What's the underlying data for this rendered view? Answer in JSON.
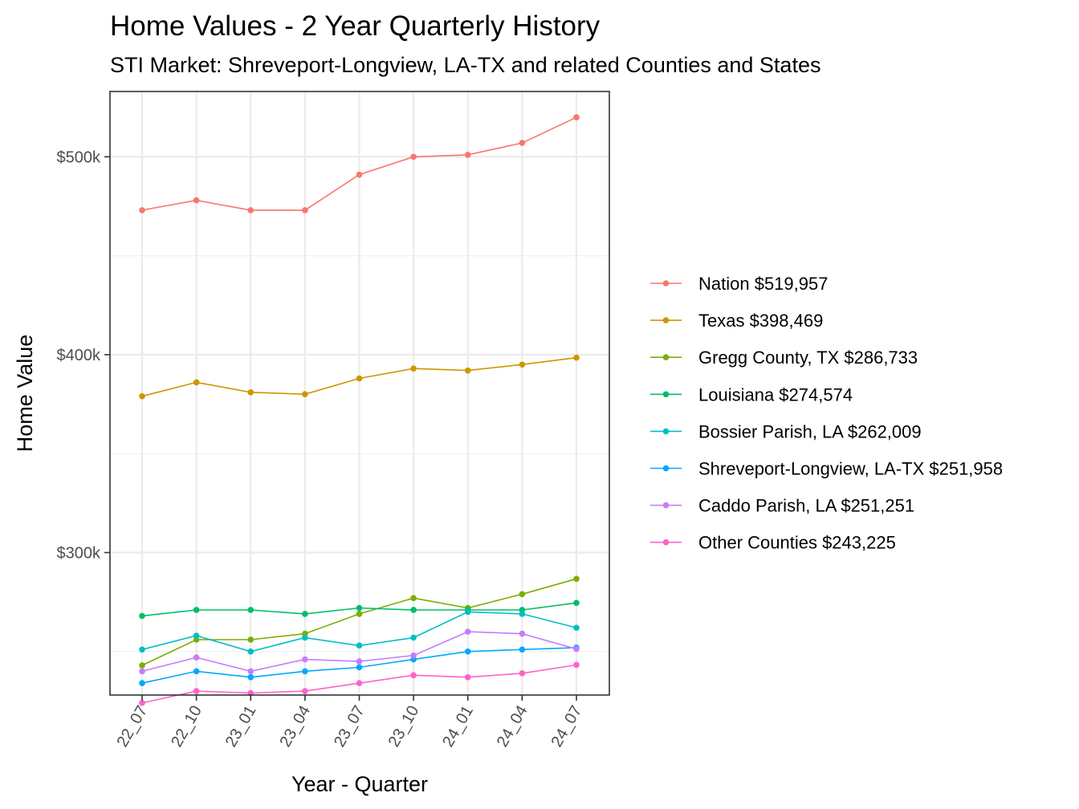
{
  "chart_data": {
    "type": "line",
    "title": "Home Values - 2 Year Quarterly History",
    "subtitle": "STI Market: Shreveport-Longview, LA-TX and related Counties and States",
    "xlabel": "Year - Quarter",
    "ylabel": "Home Value",
    "categories": [
      "22_07",
      "22_10",
      "23_01",
      "23_04",
      "23_07",
      "23_10",
      "24_01",
      "24_04",
      "24_07"
    ],
    "y_ticks": [
      300000,
      400000,
      500000
    ],
    "y_tick_labels": [
      "$300k",
      "$400k",
      "$500k"
    ],
    "ylim": [
      228000,
      533000
    ],
    "grid": true,
    "legend_position": "right",
    "series": [
      {
        "name": "Nation $519,957",
        "color": "#F8766D",
        "values": [
          473000,
          478000,
          473000,
          473000,
          491000,
          500000,
          501000,
          507000,
          519957
        ]
      },
      {
        "name": "Texas $398,469",
        "color": "#CD9600",
        "values": [
          379000,
          386000,
          381000,
          380000,
          388000,
          393000,
          392000,
          395000,
          398469
        ]
      },
      {
        "name": "Gregg County, TX $286,733",
        "color": "#7CAE00",
        "values": [
          243000,
          256000,
          256000,
          259000,
          269000,
          277000,
          272000,
          279000,
          286733
        ]
      },
      {
        "name": "Louisiana $274,574",
        "color": "#00BE67",
        "values": [
          268000,
          271000,
          271000,
          269000,
          272000,
          271000,
          271000,
          271000,
          274574
        ]
      },
      {
        "name": "Bossier Parish, LA $262,009",
        "color": "#00BFC4",
        "values": [
          251000,
          258000,
          250000,
          257000,
          253000,
          257000,
          270000,
          269000,
          262009
        ]
      },
      {
        "name": "Shreveport-Longview, LA-TX $251,958",
        "color": "#00A9FF",
        "values": [
          234000,
          240000,
          237000,
          240000,
          242000,
          246000,
          250000,
          251000,
          251958
        ]
      },
      {
        "name": "Caddo Parish, LA $251,251",
        "color": "#C77CFF",
        "values": [
          240000,
          247000,
          240000,
          246000,
          245000,
          248000,
          260000,
          259000,
          251251
        ]
      },
      {
        "name": "Other Counties $243,225",
        "color": "#FF61CC",
        "values": [
          224000,
          230000,
          229000,
          230000,
          234000,
          238000,
          237000,
          239000,
          243225
        ]
      }
    ]
  }
}
